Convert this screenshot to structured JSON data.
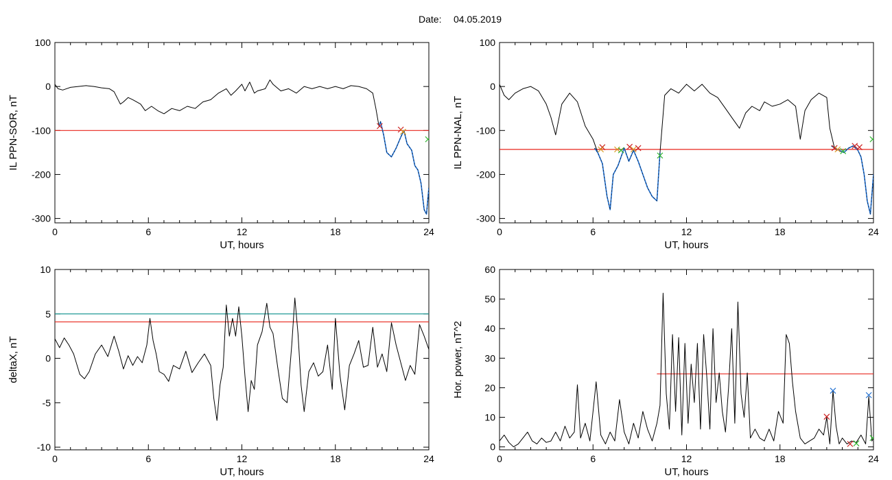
{
  "figure": {
    "title_prefix": "Date:",
    "date": "04.05.2019"
  },
  "colors": {
    "trace": "#000000",
    "threshold": "#e8251b",
    "threshold_alt": "#1f9a95",
    "event_trace": "#1f6fd1",
    "marker_red": "#cc1f1f",
    "marker_green": "#2fb52f",
    "marker_orange": "#d89a1f",
    "marker_blue": "#1f6fd1"
  },
  "chart_data": [
    {
      "type": "line",
      "ylabel": "IL PPN-SOR, nT",
      "xlabel": "UT, hours",
      "xlim": [
        0,
        24
      ],
      "ylim": [
        -310,
        100
      ],
      "xticks": [
        0,
        6,
        12,
        18,
        24
      ],
      "yticks": [
        100,
        0,
        -100,
        -200,
        -300
      ],
      "grid": false,
      "series": [
        {
          "x": [
            0,
            0.2,
            0.5,
            1,
            1.5,
            2,
            2.5,
            3,
            3.5,
            3.8,
            4.2,
            4.4,
            4.7,
            5,
            5.5,
            5.8,
            6.2,
            6.6,
            7,
            7.5,
            8,
            8.5,
            9,
            9.5,
            10,
            10.5,
            11,
            11.3,
            11.6,
            12,
            12.2,
            12.5,
            12.8,
            13,
            13.5,
            13.8,
            14,
            14.5,
            15,
            15.5,
            16,
            16.5,
            17,
            17.5,
            18,
            18.5,
            19,
            19.5,
            20,
            20.4,
            20.6,
            20.8,
            20.9,
            21.1,
            21.3,
            21.6,
            21.9,
            22.2,
            22.4,
            22.6,
            22.9,
            23.1,
            23.3,
            23.5,
            23.7,
            23.85,
            24
          ],
          "y": [
            5,
            -5,
            -8,
            -2,
            0,
            2,
            0,
            -3,
            -5,
            -12,
            -40,
            -35,
            -25,
            -30,
            -40,
            -55,
            -45,
            -55,
            -62,
            -50,
            -55,
            -45,
            -50,
            -35,
            -30,
            -15,
            -5,
            -20,
            -10,
            5,
            -10,
            10,
            -15,
            -10,
            -5,
            15,
            5,
            -10,
            -5,
            -15,
            0,
            -5,
            0,
            -5,
            0,
            -5,
            2,
            0,
            -5,
            -15,
            -50,
            -90,
            -80,
            -110,
            -150,
            -160,
            -140,
            -115,
            -100,
            -130,
            -145,
            -180,
            -190,
            -220,
            -280,
            -290,
            -230
          ]
        }
      ],
      "thresholds": [
        {
          "value": -100,
          "color": "#e8251b",
          "x": [
            0,
            24
          ]
        }
      ],
      "event_segments": [
        {
          "x": [
            20.8,
            20.9,
            21.1,
            21.3,
            21.6,
            21.9,
            22.2,
            22.4,
            22.6,
            22.9,
            23.1,
            23.3,
            23.5,
            23.7,
            23.85,
            24
          ],
          "y": [
            -90,
            -80,
            -110,
            -150,
            -160,
            -140,
            -115,
            -100,
            -130,
            -145,
            -180,
            -190,
            -220,
            -280,
            -290,
            -230
          ]
        }
      ],
      "markers": [
        {
          "x": 20.85,
          "y": -90,
          "color": "#cc1f1f"
        },
        {
          "x": 22.2,
          "y": -98,
          "color": "#cc1f1f"
        },
        {
          "x": 22.35,
          "y": -103,
          "color": "#d89a1f"
        },
        {
          "x": 23.95,
          "y": -120,
          "color": "#2fb52f"
        }
      ]
    },
    {
      "type": "line",
      "ylabel": "IL PPN-NAL, nT",
      "xlabel": "UT, hours",
      "xlim": [
        0,
        24
      ],
      "ylim": [
        -310,
        100
      ],
      "xticks": [
        0,
        6,
        12,
        18,
        24
      ],
      "yticks": [
        100,
        0,
        -100,
        -200,
        -300
      ],
      "grid": false,
      "series": [
        {
          "x": [
            0,
            0.3,
            0.6,
            1,
            1.5,
            2,
            2.5,
            3,
            3.3,
            3.6,
            4,
            4.5,
            5,
            5.5,
            6,
            6.3,
            6.6,
            6.9,
            7.1,
            7.3,
            7.6,
            8,
            8.3,
            8.6,
            8.9,
            9.2,
            9.5,
            9.8,
            10.1,
            10.3,
            10.6,
            11,
            11.5,
            12,
            12.5,
            13,
            13.5,
            14,
            14.5,
            15,
            15.4,
            15.8,
            16.2,
            16.7,
            17,
            17.5,
            18,
            18.5,
            19,
            19.3,
            19.6,
            20,
            20.5,
            21,
            21.2,
            21.5,
            21.8,
            22.1,
            22.4,
            22.7,
            23,
            23.2,
            23.4,
            23.6,
            23.8,
            24
          ],
          "y": [
            5,
            -20,
            -30,
            -15,
            -5,
            0,
            -10,
            -40,
            -70,
            -110,
            -40,
            -15,
            -35,
            -90,
            -120,
            -150,
            -175,
            -250,
            -280,
            -200,
            -180,
            -140,
            -170,
            -145,
            -170,
            -200,
            -230,
            -250,
            -260,
            -150,
            -20,
            -5,
            -15,
            5,
            -10,
            5,
            -15,
            -25,
            -50,
            -75,
            -95,
            -60,
            -45,
            -55,
            -35,
            -45,
            -40,
            -30,
            -45,
            -120,
            -55,
            -30,
            -15,
            -25,
            -95,
            -140,
            -145,
            -150,
            -140,
            -135,
            -145,
            -160,
            -200,
            -260,
            -290,
            -200
          ]
        }
      ],
      "thresholds": [
        {
          "value": -143,
          "color": "#e8251b",
          "x": [
            0,
            24
          ]
        }
      ],
      "event_segments": [
        {
          "x": [
            6.1,
            6.3,
            6.6,
            6.9,
            7.1,
            7.3,
            7.6,
            8,
            8.3,
            8.6,
            8.9,
            9.2,
            9.5,
            9.8,
            10.1,
            10.3
          ],
          "y": [
            -140,
            -150,
            -175,
            -250,
            -280,
            -200,
            -180,
            -140,
            -170,
            -145,
            -170,
            -200,
            -230,
            -250,
            -260,
            -150
          ]
        },
        {
          "x": [
            21.3,
            21.5,
            21.8,
            22.1,
            22.4,
            22.7,
            23,
            23.2,
            23.4,
            23.6,
            23.8,
            24
          ],
          "y": [
            -135,
            -140,
            -145,
            -150,
            -140,
            -135,
            -145,
            -160,
            -200,
            -260,
            -290,
            -200
          ]
        }
      ],
      "markers": [
        {
          "x": 6.6,
          "y": -138,
          "color": "#cc1f1f"
        },
        {
          "x": 6.5,
          "y": -143,
          "color": "#d89a1f"
        },
        {
          "x": 7.55,
          "y": -143,
          "color": "#d89a1f"
        },
        {
          "x": 7.8,
          "y": -145,
          "color": "#2fb52f"
        },
        {
          "x": 8.35,
          "y": -137,
          "color": "#cc1f1f"
        },
        {
          "x": 8.6,
          "y": -143,
          "color": "#d89a1f"
        },
        {
          "x": 8.9,
          "y": -140,
          "color": "#cc1f1f"
        },
        {
          "x": 10.3,
          "y": -157,
          "color": "#2fb52f"
        },
        {
          "x": 21.5,
          "y": -140,
          "color": "#cc1f1f"
        },
        {
          "x": 21.7,
          "y": -143,
          "color": "#d89a1f"
        },
        {
          "x": 22.05,
          "y": -147,
          "color": "#2fb52f"
        },
        {
          "x": 22.8,
          "y": -135,
          "color": "#cc1f1f"
        },
        {
          "x": 23.1,
          "y": -138,
          "color": "#cc1f1f"
        },
        {
          "x": 23.95,
          "y": -120,
          "color": "#2fb52f"
        }
      ]
    },
    {
      "type": "line",
      "ylabel": "deltaX, nT",
      "xlabel": "UT, hours",
      "xlim": [
        0,
        24
      ],
      "ylim": [
        -10.3,
        10
      ],
      "xticks": [
        0,
        6,
        12,
        18,
        24
      ],
      "yticks": [
        10,
        5,
        0,
        -5,
        -10
      ],
      "grid": false,
      "series": [
        {
          "x": [
            0,
            0.3,
            0.6,
            0.9,
            1.2,
            1.6,
            1.9,
            2.2,
            2.6,
            3,
            3.4,
            3.8,
            4.1,
            4.4,
            4.7,
            5,
            5.3,
            5.6,
            5.9,
            6.1,
            6.3,
            6.5,
            6.7,
            7,
            7.3,
            7.6,
            8,
            8.4,
            8.8,
            9.2,
            9.6,
            10,
            10.2,
            10.4,
            10.6,
            10.8,
            11,
            11.2,
            11.4,
            11.6,
            11.8,
            12,
            12.2,
            12.4,
            12.6,
            12.8,
            13,
            13.3,
            13.6,
            13.8,
            14,
            14.3,
            14.6,
            14.9,
            15.2,
            15.4,
            15.6,
            15.8,
            16,
            16.3,
            16.6,
            16.9,
            17.2,
            17.5,
            17.8,
            18,
            18.3,
            18.6,
            18.9,
            19.2,
            19.5,
            19.8,
            20.1,
            20.4,
            20.7,
            21,
            21.3,
            21.6,
            21.9,
            22.2,
            22.5,
            22.8,
            23.1,
            23.4,
            23.7,
            24
          ],
          "y": [
            2.2,
            1.2,
            2.3,
            1.5,
            0.5,
            -1.8,
            -2.3,
            -1.5,
            0.5,
            1.5,
            0.2,
            2.5,
            0.8,
            -1.2,
            0.3,
            -0.8,
            0.2,
            -0.5,
            1.5,
            4.5,
            2,
            0.5,
            -1.5,
            -1.8,
            -2.6,
            -0.8,
            -1.2,
            0.8,
            -1.6,
            -0.5,
            0.5,
            -0.8,
            -4.5,
            -7,
            -3,
            -1,
            6,
            2.5,
            4.5,
            2.5,
            5.8,
            2.5,
            -2,
            -6,
            -2.5,
            -3.5,
            1.5,
            3,
            6.2,
            3.5,
            2.8,
            -1,
            -4.5,
            -5,
            1.5,
            6.8,
            2.8,
            -3,
            -6,
            -1.5,
            -0.5,
            -2,
            -1.5,
            1.5,
            -3.5,
            4.5,
            -2,
            -5.8,
            -0.8,
            0.5,
            2,
            -1,
            -0.8,
            3.5,
            -1,
            0.5,
            -1.5,
            4,
            1.5,
            -0.5,
            -2.5,
            -0.8,
            -1.8,
            3.8,
            2.5,
            1
          ]
        }
      ],
      "thresholds": [
        {
          "value": 5,
          "color": "#1f9a95",
          "x": [
            0,
            24
          ]
        },
        {
          "value": 4.1,
          "color": "#e8251b",
          "x": [
            0,
            24
          ]
        }
      ],
      "event_segments": [],
      "markers": []
    },
    {
      "type": "line",
      "ylabel": "Hor. power, nT^2",
      "xlabel": "UT, hours",
      "xlim": [
        0,
        24
      ],
      "ylim": [
        -1,
        60
      ],
      "xticks": [
        0,
        6,
        12,
        18,
        24
      ],
      "yticks": [
        60,
        50,
        40,
        30,
        20,
        10,
        0
      ],
      "grid": false,
      "series": [
        {
          "x": [
            0,
            0.3,
            0.6,
            0.9,
            1.2,
            1.5,
            1.8,
            2.1,
            2.4,
            2.7,
            3,
            3.3,
            3.6,
            3.9,
            4.2,
            4.5,
            4.8,
            5,
            5.2,
            5.5,
            5.8,
            6,
            6.2,
            6.5,
            6.8,
            7.1,
            7.4,
            7.7,
            8,
            8.3,
            8.6,
            8.9,
            9.2,
            9.5,
            9.8,
            10.1,
            10.3,
            10.5,
            10.7,
            10.9,
            11.1,
            11.3,
            11.5,
            11.7,
            11.9,
            12.1,
            12.3,
            12.5,
            12.7,
            12.9,
            13.1,
            13.3,
            13.5,
            13.7,
            13.9,
            14.1,
            14.3,
            14.5,
            14.7,
            14.9,
            15.1,
            15.3,
            15.5,
            15.7,
            15.9,
            16.1,
            16.4,
            16.7,
            17,
            17.3,
            17.6,
            17.9,
            18.2,
            18.4,
            18.6,
            18.8,
            19,
            19.3,
            19.6,
            19.9,
            20.2,
            20.5,
            20.8,
            21,
            21.2,
            21.4,
            21.6,
            21.8,
            22,
            22.3,
            22.6,
            22.9,
            23.2,
            23.5,
            23.7,
            23.9,
            24
          ],
          "y": [
            2,
            4,
            1.5,
            0,
            1,
            3,
            5,
            2,
            1,
            3,
            1.5,
            2,
            5,
            2,
            7,
            3,
            5,
            21,
            3,
            8,
            2,
            12,
            22,
            4,
            1,
            5,
            2,
            16,
            5,
            1,
            8,
            3,
            12,
            6,
            2,
            8,
            14,
            52,
            18,
            6,
            38,
            12,
            37,
            4,
            35,
            8,
            28,
            15,
            35,
            6,
            38,
            24,
            6,
            40,
            15,
            25,
            12,
            5,
            20,
            40,
            8,
            49,
            18,
            10,
            25,
            3,
            6,
            3,
            2,
            6,
            2,
            12,
            8,
            38,
            35,
            22,
            12,
            3,
            1,
            2,
            3,
            6,
            4,
            10,
            1,
            19,
            7,
            1,
            3,
            1,
            2,
            1.5,
            4,
            1,
            17,
            2,
            3
          ]
        }
      ],
      "thresholds": [
        {
          "value": 24.7,
          "color": "#e8251b",
          "x": [
            10.1,
            24
          ]
        }
      ],
      "event_segments": [],
      "markers": [
        {
          "x": 21,
          "y": 10.2,
          "color": "#cc1f1f"
        },
        {
          "x": 21.4,
          "y": 19,
          "color": "#1f6fd1"
        },
        {
          "x": 22.5,
          "y": 1,
          "color": "#cc1f1f"
        },
        {
          "x": 22.9,
          "y": 1.2,
          "color": "#2fb52f"
        },
        {
          "x": 23.7,
          "y": 17.5,
          "color": "#1f6fd1"
        },
        {
          "x": 23.95,
          "y": 3,
          "color": "#2fb52f"
        }
      ]
    }
  ]
}
